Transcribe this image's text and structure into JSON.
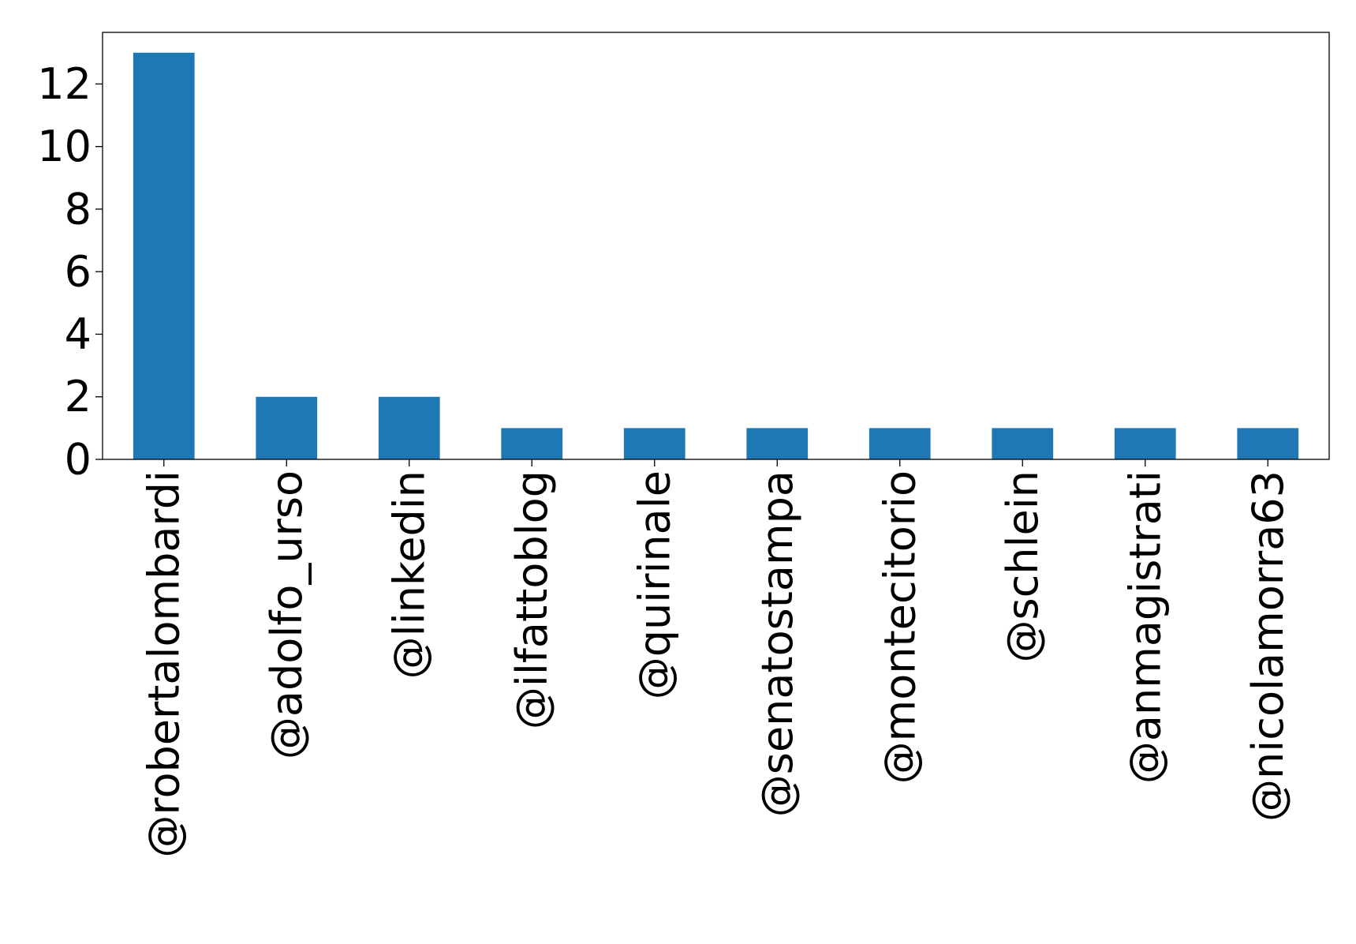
{
  "chart_data": {
    "type": "bar",
    "title": "",
    "xlabel": "",
    "ylabel": "",
    "categories": [
      "@robertalombardi",
      "@adolfo_urso",
      "@linkedin",
      "@ilfattoblog",
      "@quirinale",
      "@senatostampa",
      "@montecitorio",
      "@schlein",
      "@anmagistrati",
      "@nicolamorra63"
    ],
    "values": [
      13,
      2,
      2,
      1,
      1,
      1,
      1,
      1,
      1,
      1
    ],
    "ylim": [
      0,
      13.65
    ],
    "yticks": [
      0,
      2,
      4,
      6,
      8,
      10,
      12
    ],
    "ytick_labels": [
      "0",
      "2",
      "4",
      "6",
      "8",
      "10",
      "12"
    ],
    "grid": false,
    "colors": {
      "bar": "#1f77b4",
      "axis": "#000000",
      "text": "#000000"
    }
  }
}
